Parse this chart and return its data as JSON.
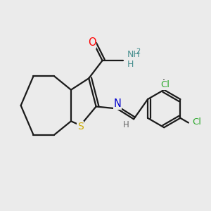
{
  "background_color": "#ebebeb",
  "bond_color": "#1a1a1a",
  "atom_colors": {
    "O": "#ff0000",
    "N": "#0000cc",
    "S": "#ccaa00",
    "Cl": "#33aa33",
    "NH_teal": "#4a9090",
    "H_gray": "#555555",
    "C": "#1a1a1a"
  },
  "figsize": [
    3.0,
    3.0
  ],
  "dpi": 100
}
